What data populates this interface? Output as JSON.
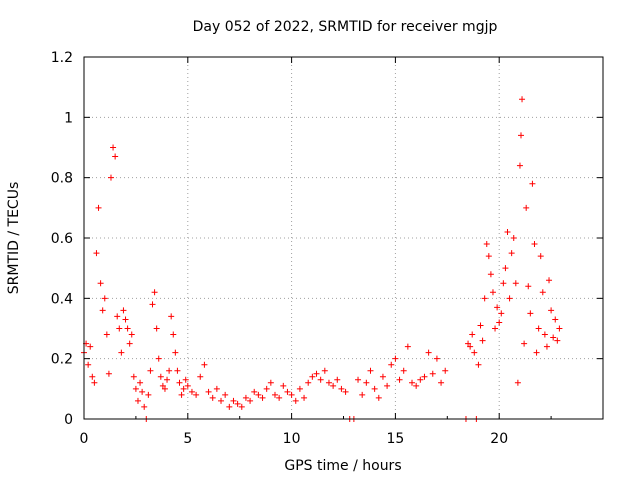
{
  "chart_data": {
    "type": "scatter",
    "title": "Day 052 of 2022, SRMTID for receiver mgjp",
    "xlabel": "GPS time / hours",
    "ylabel": "SRMTID / TECUs",
    "xlim": [
      0,
      25
    ],
    "ylim": [
      0,
      1.2
    ],
    "xticks": [
      0,
      5,
      10,
      15,
      20
    ],
    "xtick_labels": [
      "0",
      "5",
      "10",
      "15",
      "20"
    ],
    "yticks": [
      0,
      0.2,
      0.4,
      0.6,
      0.8,
      1.0,
      1.2
    ],
    "ytick_labels": [
      "0",
      "0.2",
      "0.4",
      "0.6",
      "0.8",
      "1",
      "1.2"
    ],
    "grid": true,
    "marker": "+",
    "series": [
      {
        "name": "SRMTID",
        "color": "#ff0000",
        "x": [
          0.0,
          0.1,
          0.2,
          0.3,
          0.4,
          0.5,
          0.6,
          0.7,
          0.8,
          0.9,
          1.0,
          1.1,
          1.2,
          1.3,
          1.4,
          1.5,
          1.6,
          1.7,
          1.8,
          1.9,
          2.0,
          2.1,
          2.2,
          2.3,
          2.4,
          2.5,
          2.6,
          2.7,
          2.8,
          2.9,
          3.0,
          3.1,
          3.2,
          3.3,
          3.4,
          3.5,
          3.6,
          3.7,
          3.8,
          3.9,
          4.0,
          4.1,
          4.2,
          4.3,
          4.4,
          4.5,
          4.6,
          4.7,
          4.8,
          4.9,
          5.0,
          5.2,
          5.4,
          5.6,
          5.8,
          6.0,
          6.2,
          6.4,
          6.6,
          6.8,
          7.0,
          7.2,
          7.4,
          7.6,
          7.8,
          8.0,
          8.2,
          8.4,
          8.6,
          8.8,
          9.0,
          9.2,
          9.4,
          9.6,
          9.8,
          10.0,
          10.2,
          10.4,
          10.6,
          10.8,
          11.0,
          11.2,
          11.4,
          11.6,
          11.8,
          12.0,
          12.2,
          12.4,
          12.6,
          12.8,
          13.0,
          13.2,
          13.4,
          13.6,
          13.8,
          14.0,
          14.2,
          14.4,
          14.6,
          14.8,
          15.0,
          15.2,
          15.4,
          15.6,
          15.8,
          16.0,
          16.2,
          16.4,
          16.6,
          16.8,
          17.0,
          17.2,
          17.4,
          18.4,
          18.5,
          18.6,
          18.7,
          18.8,
          18.9,
          19.0,
          19.1,
          19.2,
          19.3,
          19.4,
          19.5,
          19.6,
          19.7,
          19.8,
          19.9,
          20.0,
          20.1,
          20.2,
          20.3,
          20.4,
          20.5,
          20.6,
          20.7,
          20.8,
          20.9,
          21.0,
          21.05,
          21.1,
          21.2,
          21.3,
          21.4,
          21.5,
          21.6,
          21.7,
          21.8,
          21.9,
          22.0,
          22.1,
          22.2,
          22.3,
          22.4,
          22.5,
          22.6,
          22.7,
          22.8,
          22.9
        ],
        "y": [
          0.22,
          0.25,
          0.18,
          0.24,
          0.14,
          0.12,
          0.55,
          0.7,
          0.45,
          0.36,
          0.4,
          0.28,
          0.15,
          0.8,
          0.9,
          0.87,
          0.34,
          0.3,
          0.22,
          0.36,
          0.33,
          0.3,
          0.25,
          0.28,
          0.14,
          0.1,
          0.06,
          0.12,
          0.09,
          0.04,
          0.0,
          0.08,
          0.16,
          0.38,
          0.42,
          0.3,
          0.2,
          0.14,
          0.11,
          0.1,
          0.13,
          0.16,
          0.34,
          0.28,
          0.22,
          0.16,
          0.12,
          0.08,
          0.1,
          0.13,
          0.11,
          0.09,
          0.08,
          0.14,
          0.18,
          0.09,
          0.07,
          0.1,
          0.06,
          0.08,
          0.04,
          0.06,
          0.05,
          0.04,
          0.07,
          0.06,
          0.09,
          0.08,
          0.07,
          0.1,
          0.12,
          0.08,
          0.07,
          0.11,
          0.09,
          0.08,
          0.06,
          0.1,
          0.07,
          0.12,
          0.14,
          0.15,
          0.13,
          0.16,
          0.12,
          0.11,
          0.13,
          0.1,
          0.09,
          0.0,
          0.0,
          0.13,
          0.08,
          0.12,
          0.16,
          0.1,
          0.07,
          0.14,
          0.11,
          0.18,
          0.2,
          0.13,
          0.16,
          0.24,
          0.12,
          0.11,
          0.13,
          0.14,
          0.22,
          0.15,
          0.2,
          0.12,
          0.16,
          0.0,
          0.25,
          0.24,
          0.28,
          0.22,
          0.0,
          0.18,
          0.31,
          0.26,
          0.4,
          0.58,
          0.54,
          0.48,
          0.42,
          0.3,
          0.37,
          0.32,
          0.35,
          0.45,
          0.5,
          0.62,
          0.4,
          0.55,
          0.6,
          0.45,
          0.12,
          0.84,
          0.94,
          1.06,
          0.25,
          0.7,
          0.44,
          0.35,
          0.78,
          0.58,
          0.22,
          0.3,
          0.54,
          0.42,
          0.28,
          0.24,
          0.46,
          0.36,
          0.27,
          0.33,
          0.26,
          0.3
        ]
      }
    ]
  }
}
